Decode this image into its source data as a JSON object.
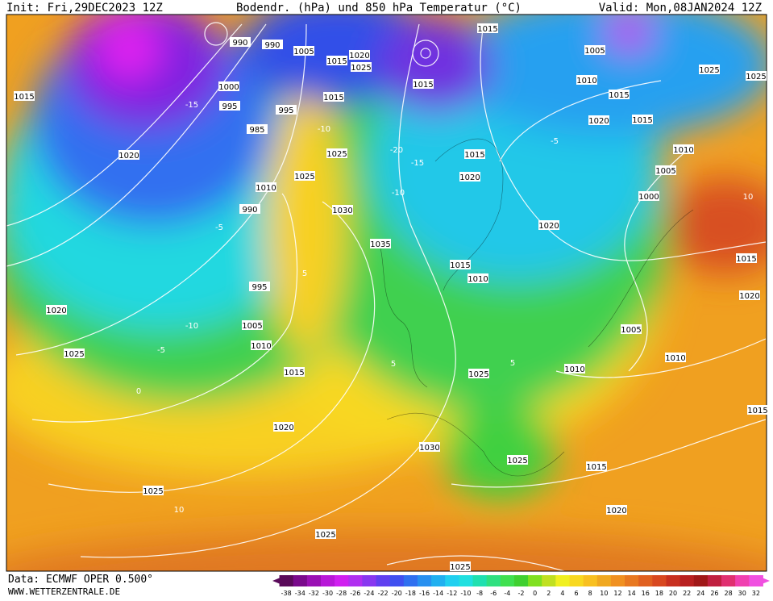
{
  "header": {
    "init": "Init: Fri,29DEC2023 12Z",
    "title": "Bodendr. (hPa) und 850 hPa Temperatur (°C)",
    "valid": "Valid: Mon,08JAN2024 12Z"
  },
  "footer": {
    "source": "Data: ECMWF OPER 0.500°",
    "url": "WWW.WETTERZENTRALE.DE"
  },
  "legend": {
    "labels": [
      "-38",
      "-34",
      "-32",
      "-30",
      "-28",
      "-26",
      "-24",
      "-22",
      "-20",
      "-18",
      "-16",
      "-14",
      "-12",
      "-10",
      "-8",
      "-6",
      "-4",
      "-2",
      "0",
      "2",
      "4",
      "6",
      "8",
      "10",
      "12",
      "14",
      "16",
      "18",
      "20",
      "22",
      "24",
      "26",
      "28",
      "30",
      "32"
    ],
    "colors": [
      "#5a0a5a",
      "#7a0a8c",
      "#9a10b4",
      "#b818d8",
      "#d020f0",
      "#b030f0",
      "#8838f0",
      "#6040f0",
      "#4050f0",
      "#3070f0",
      "#2890f0",
      "#20b0f0",
      "#20d0f0",
      "#20e0e0",
      "#20e0b0",
      "#30e080",
      "#40e050",
      "#40d030",
      "#80e020",
      "#c0e020",
      "#f0f020",
      "#f8d820",
      "#f8c020",
      "#f0a820",
      "#f09020",
      "#e87820",
      "#e06020",
      "#d84820",
      "#c83020",
      "#b82020",
      "#a01818",
      "#c02040",
      "#e03070",
      "#f040b0",
      "#f050e0"
    ]
  },
  "isobar_labels": [
    "990",
    "990",
    "1005",
    "1015",
    "1020",
    "1025",
    "1000",
    "995",
    "995",
    "1015",
    "985",
    "1025",
    "1025",
    "1010",
    "990",
    "1030",
    "1035",
    "995",
    "1005",
    "1010",
    "1015",
    "1020",
    "1030",
    "1025",
    "1015",
    "1020",
    "1025",
    "1025",
    "1025",
    "1025",
    "1020",
    "1020",
    "1015",
    "1015",
    "1015",
    "1005",
    "1010",
    "1015",
    "1020",
    "1015",
    "1010",
    "1005",
    "1000",
    "1015",
    "1020",
    "1020",
    "1015",
    "1010",
    "1005",
    "1010",
    "1010",
    "1025",
    "1025",
    "1025",
    "1015",
    "1020",
    "1015"
  ],
  "temperature_labels": [
    "-10",
    "-5",
    "0",
    "5",
    "5",
    "10",
    "-20",
    "-15",
    "-10",
    "5",
    "-15",
    "-10",
    "-5",
    "10",
    "-5"
  ]
}
